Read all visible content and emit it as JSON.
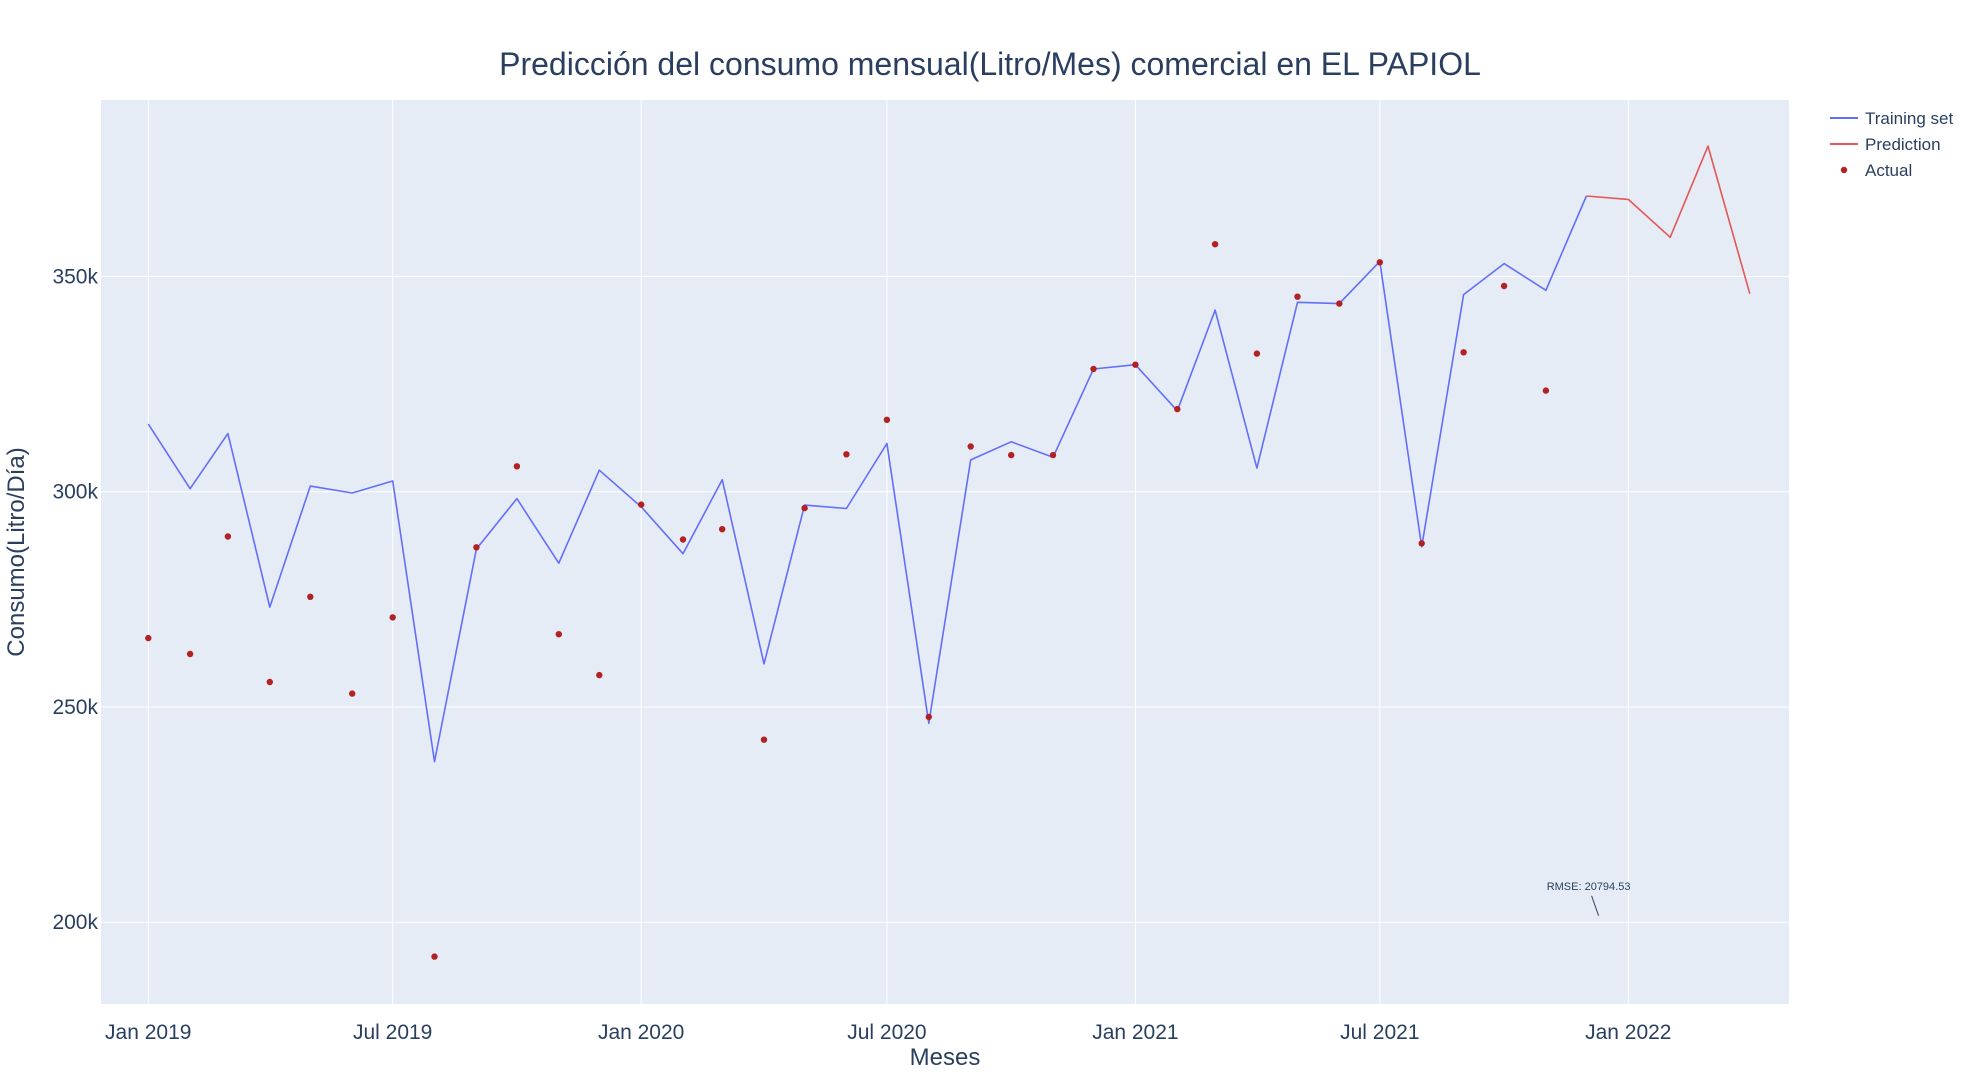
{
  "chart_data": {
    "type": "line",
    "title": "Predicción del consumo mensual(Litro/Mes) comercial en EL PAPIOL",
    "xlabel": "Meses",
    "ylabel": "Consumo(Litro/Día)",
    "x_range": [
      "2018-11-27",
      "2022-04-30"
    ],
    "ylim": [
      181000,
      391000
    ],
    "x_ticks": [
      {
        "date": "2019-01-01",
        "label": "Jan 2019"
      },
      {
        "date": "2019-07-01",
        "label": "Jul 2019"
      },
      {
        "date": "2020-01-01",
        "label": "Jan 2020"
      },
      {
        "date": "2020-07-01",
        "label": "Jul 2020"
      },
      {
        "date": "2021-01-01",
        "label": "Jan 2021"
      },
      {
        "date": "2021-07-01",
        "label": "Jul 2021"
      },
      {
        "date": "2022-01-01",
        "label": "Jan 2022"
      }
    ],
    "y_ticks": [
      {
        "value": 200000,
        "label": "200k"
      },
      {
        "value": 250000,
        "label": "250k"
      },
      {
        "value": 300000,
        "label": "300k"
      },
      {
        "value": 350000,
        "label": "350k"
      }
    ],
    "series": [
      {
        "name": "Training set",
        "type": "line",
        "color": "#636efa",
        "points": [
          [
            "2019-01-01",
            315700
          ],
          [
            "2019-02-01",
            300700
          ],
          [
            "2019-03-01",
            313500
          ],
          [
            "2019-04-01",
            273200
          ],
          [
            "2019-05-01",
            301300
          ],
          [
            "2019-06-01",
            299700
          ],
          [
            "2019-07-01",
            302500
          ],
          [
            "2019-08-01",
            237300
          ],
          [
            "2019-09-01",
            286700
          ],
          [
            "2019-10-01",
            298400
          ],
          [
            "2019-11-01",
            283400
          ],
          [
            "2019-12-01",
            305000
          ],
          [
            "2020-01-01",
            296500
          ],
          [
            "2020-02-01",
            285600
          ],
          [
            "2020-03-01",
            302800
          ],
          [
            "2020-04-01",
            260000
          ],
          [
            "2020-05-01",
            296900
          ],
          [
            "2020-06-01",
            296100
          ],
          [
            "2020-07-01",
            311200
          ],
          [
            "2020-08-01",
            246200
          ],
          [
            "2020-09-01",
            307400
          ],
          [
            "2020-10-01",
            311600
          ],
          [
            "2020-11-01",
            308000
          ],
          [
            "2020-12-01",
            328500
          ],
          [
            "2021-01-01",
            329500
          ],
          [
            "2021-02-01",
            318800
          ],
          [
            "2021-03-01",
            342200
          ],
          [
            "2021-04-01",
            305500
          ],
          [
            "2021-05-01",
            344000
          ],
          [
            "2021-06-01",
            343700
          ],
          [
            "2021-07-01",
            353500
          ],
          [
            "2021-08-01",
            287200
          ],
          [
            "2021-09-01",
            345800
          ],
          [
            "2021-10-01",
            353000
          ],
          [
            "2021-11-01",
            346800
          ],
          [
            "2021-12-01",
            368700
          ]
        ]
      },
      {
        "name": "Prediction",
        "type": "line",
        "color": "#e45756",
        "points": [
          [
            "2021-12-01",
            368700
          ],
          [
            "2022-01-01",
            367900
          ],
          [
            "2022-02-01",
            359100
          ],
          [
            "2022-03-01",
            380300
          ],
          [
            "2022-04-01",
            346000
          ]
        ]
      },
      {
        "name": "Actual",
        "type": "scatter",
        "color": "#b22222",
        "points": [
          [
            "2019-01-01",
            266000
          ],
          [
            "2019-02-01",
            262300
          ],
          [
            "2019-03-01",
            289600
          ],
          [
            "2019-04-01",
            255800
          ],
          [
            "2019-05-01",
            275600
          ],
          [
            "2019-06-01",
            253100
          ],
          [
            "2019-07-01",
            270800
          ],
          [
            "2019-08-01",
            192000
          ],
          [
            "2019-09-01",
            287100
          ],
          [
            "2019-10-01",
            305900
          ],
          [
            "2019-11-01",
            266900
          ],
          [
            "2019-12-01",
            257400
          ],
          [
            "2020-01-01",
            297000
          ],
          [
            "2020-02-01",
            288900
          ],
          [
            "2020-03-01",
            291300
          ],
          [
            "2020-04-01",
            242400
          ],
          [
            "2020-05-01",
            296200
          ],
          [
            "2020-06-01",
            308700
          ],
          [
            "2020-07-01",
            316700
          ],
          [
            "2020-08-01",
            247700
          ],
          [
            "2020-09-01",
            310500
          ],
          [
            "2020-10-01",
            308500
          ],
          [
            "2020-11-01",
            308500
          ],
          [
            "2020-12-01",
            328500
          ],
          [
            "2021-01-01",
            329500
          ],
          [
            "2021-02-01",
            319200
          ],
          [
            "2021-03-01",
            357500
          ],
          [
            "2021-04-01",
            332100
          ],
          [
            "2021-05-01",
            345300
          ],
          [
            "2021-06-01",
            343700
          ],
          [
            "2021-07-01",
            353300
          ],
          [
            "2021-08-01",
            288000
          ],
          [
            "2021-09-01",
            332400
          ],
          [
            "2021-10-01",
            347800
          ],
          [
            "2021-11-01",
            323500
          ]
        ]
      }
    ],
    "annotations": [
      {
        "text": "RMSE: 20794.53",
        "x": "2021-12-10",
        "y": 201500
      }
    ],
    "legend": {
      "position": "top-right-outside"
    },
    "grid": true
  },
  "colors": {
    "plot_bg": "#e5ecf6",
    "grid": "#ffffff",
    "text": "#2a3f5f"
  }
}
